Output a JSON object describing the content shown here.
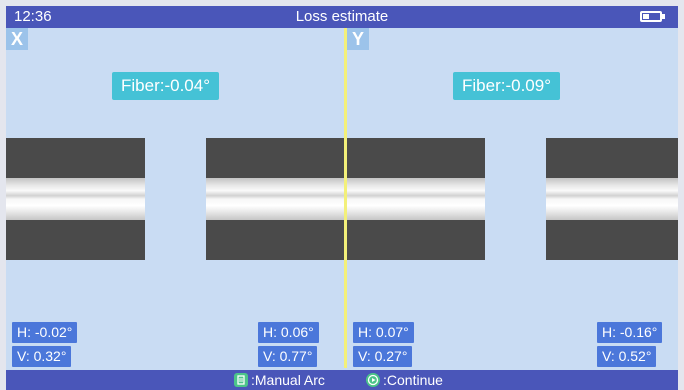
{
  "status": {
    "time": "12:36",
    "title": "Loss estimate"
  },
  "panels": {
    "x": {
      "label": "X",
      "fiber_angle": "Fiber:-0.04°",
      "left": {
        "h": "H: -0.02°",
        "v": "V: 0.32°"
      },
      "right": {
        "h": "H: 0.06°",
        "v": "V: 0.77°"
      }
    },
    "y": {
      "label": "Y",
      "fiber_angle": "Fiber:-0.09°",
      "left": {
        "h": "H: 0.07°",
        "v": "V: 0.27°"
      },
      "right": {
        "h": "H: -0.16°",
        "v": "V: 0.52°"
      }
    }
  },
  "hints": {
    "manual_arc": {
      "icon": "manual-arc-key-icon",
      "label": ":Manual Arc"
    },
    "continue": {
      "icon": "continue-key-icon",
      "label": ":Continue"
    }
  },
  "colors": {
    "bar": "#4a56b9",
    "screen_bg": "#c9dcf3",
    "fiber_angle_bg": "#45c2d6",
    "reading_bg": "#4b77da",
    "divider": "#f3f07a",
    "key_icon": "#4cc48a"
  }
}
